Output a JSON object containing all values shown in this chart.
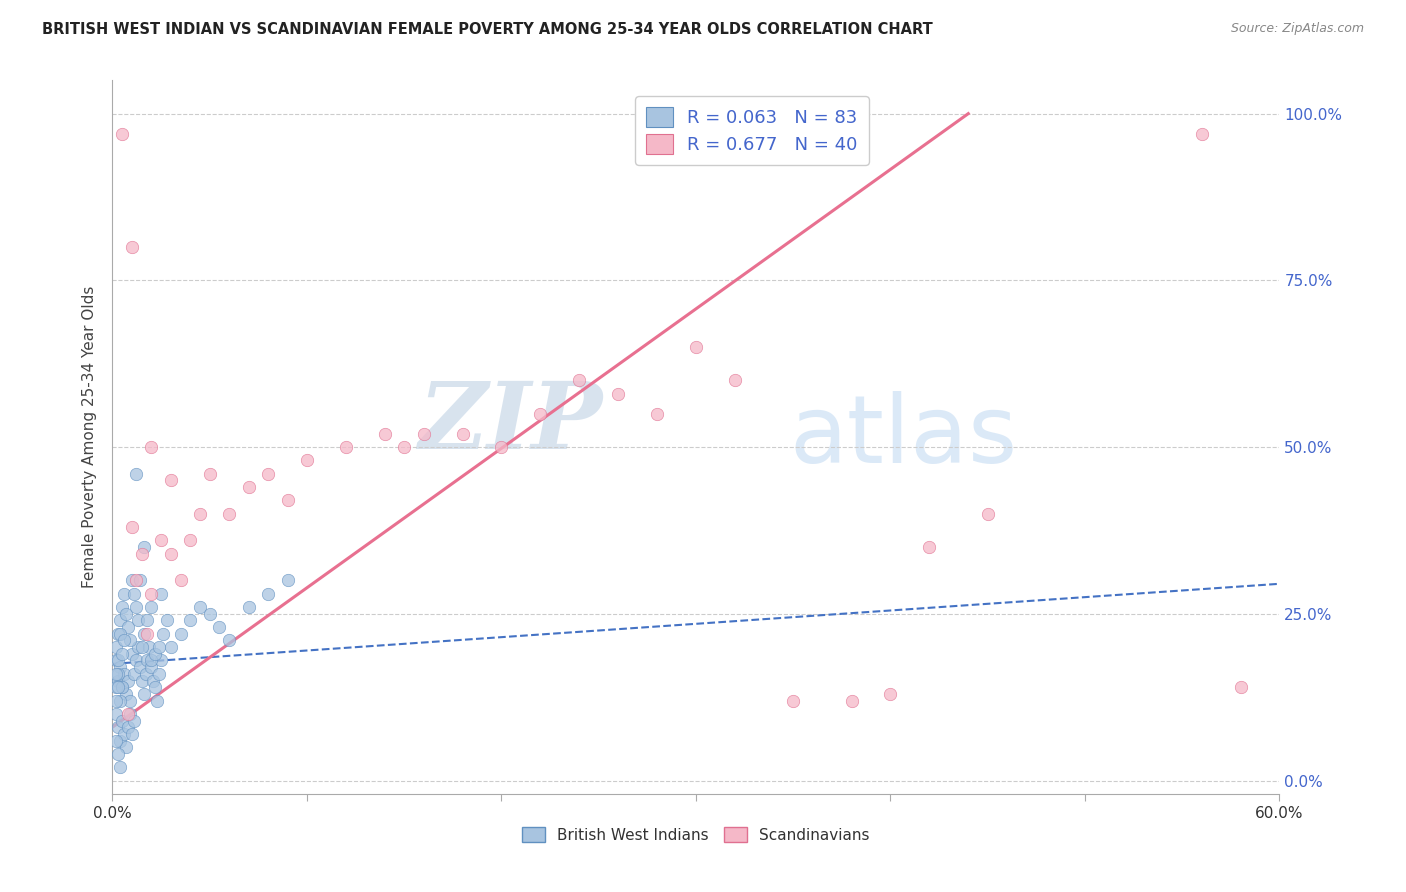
{
  "title": "BRITISH WEST INDIAN VS SCANDINAVIAN FEMALE POVERTY AMONG 25-34 YEAR OLDS CORRELATION CHART",
  "source": "Source: ZipAtlas.com",
  "ylabel": "Female Poverty Among 25-34 Year Olds",
  "xlim": [
    0.0,
    0.6
  ],
  "ylim": [
    -0.02,
    1.05
  ],
  "xtick_vals": [
    0.0,
    0.1,
    0.2,
    0.3,
    0.4,
    0.5,
    0.6
  ],
  "xtick_labels": [
    "0.0%",
    "",
    "",
    "",
    "",
    "",
    "60.0%"
  ],
  "ytick_vals": [
    0.0,
    0.25,
    0.5,
    0.75,
    1.0
  ],
  "ytick_labels_right": [
    "0.0%",
    "25.0%",
    "50.0%",
    "75.0%",
    "100.0%"
  ],
  "bwi_color": "#a8c4e0",
  "bwi_edge": "#6090c0",
  "scan_color": "#f5b8c8",
  "scan_edge": "#e07090",
  "trend_bwi_color": "#4472c4",
  "trend_scan_color": "#e87090",
  "R_bwi": 0.063,
  "N_bwi": 83,
  "R_scan": 0.677,
  "N_scan": 40,
  "legend_color": "#4466cc",
  "watermark_zip": "ZIP",
  "watermark_atlas": "atlas",
  "bwi_x": [
    0.002,
    0.003,
    0.004,
    0.005,
    0.006,
    0.007,
    0.008,
    0.009,
    0.01,
    0.011,
    0.012,
    0.013,
    0.014,
    0.015,
    0.016,
    0.017,
    0.018,
    0.019,
    0.02,
    0.021,
    0.022,
    0.023,
    0.024,
    0.025,
    0.003,
    0.004,
    0.005,
    0.006,
    0.007,
    0.008,
    0.009,
    0.01,
    0.011,
    0.012,
    0.013,
    0.002,
    0.003,
    0.004,
    0.005,
    0.006,
    0.007,
    0.008,
    0.009,
    0.01,
    0.011,
    0.002,
    0.003,
    0.004,
    0.005,
    0.006,
    0.002,
    0.003,
    0.004,
    0.005,
    0.002,
    0.003,
    0.004,
    0.002,
    0.003,
    0.002,
    0.03,
    0.035,
    0.04,
    0.045,
    0.05,
    0.055,
    0.06,
    0.07,
    0.08,
    0.09,
    0.02,
    0.022,
    0.024,
    0.026,
    0.028,
    0.015,
    0.016,
    0.018,
    0.02,
    0.025,
    0.012,
    0.014,
    0.016
  ],
  "bwi_y": [
    0.18,
    0.15,
    0.17,
    0.14,
    0.16,
    0.13,
    0.15,
    0.12,
    0.19,
    0.16,
    0.18,
    0.2,
    0.17,
    0.15,
    0.13,
    0.16,
    0.18,
    0.2,
    0.17,
    0.15,
    0.14,
    0.12,
    0.16,
    0.18,
    0.22,
    0.24,
    0.26,
    0.28,
    0.25,
    0.23,
    0.21,
    0.3,
    0.28,
    0.26,
    0.24,
    0.1,
    0.08,
    0.06,
    0.09,
    0.07,
    0.05,
    0.08,
    0.1,
    0.07,
    0.09,
    0.2,
    0.18,
    0.22,
    0.19,
    0.21,
    0.14,
    0.16,
    0.12,
    0.14,
    0.06,
    0.04,
    0.02,
    0.16,
    0.14,
    0.12,
    0.2,
    0.22,
    0.24,
    0.26,
    0.25,
    0.23,
    0.21,
    0.26,
    0.28,
    0.3,
    0.18,
    0.19,
    0.2,
    0.22,
    0.24,
    0.2,
    0.22,
    0.24,
    0.26,
    0.28,
    0.46,
    0.3,
    0.35
  ],
  "scan_x": [
    0.005,
    0.008,
    0.01,
    0.012,
    0.015,
    0.018,
    0.02,
    0.025,
    0.03,
    0.035,
    0.04,
    0.045,
    0.05,
    0.06,
    0.07,
    0.08,
    0.09,
    0.1,
    0.12,
    0.14,
    0.15,
    0.16,
    0.18,
    0.2,
    0.22,
    0.24,
    0.26,
    0.28,
    0.3,
    0.32,
    0.35,
    0.38,
    0.4,
    0.42,
    0.45,
    0.01,
    0.02,
    0.03,
    0.56,
    0.58
  ],
  "scan_y": [
    0.97,
    0.1,
    0.38,
    0.3,
    0.34,
    0.22,
    0.28,
    0.36,
    0.34,
    0.3,
    0.36,
    0.4,
    0.46,
    0.4,
    0.44,
    0.46,
    0.42,
    0.48,
    0.5,
    0.52,
    0.5,
    0.52,
    0.52,
    0.5,
    0.55,
    0.6,
    0.58,
    0.55,
    0.65,
    0.6,
    0.12,
    0.12,
    0.13,
    0.35,
    0.4,
    0.8,
    0.5,
    0.45,
    0.97,
    0.14
  ],
  "bwi_trend_x": [
    0.0,
    0.6
  ],
  "bwi_trend_y": [
    0.175,
    0.295
  ],
  "scan_trend_x": [
    0.0,
    0.44
  ],
  "scan_trend_y": [
    0.08,
    1.0
  ]
}
